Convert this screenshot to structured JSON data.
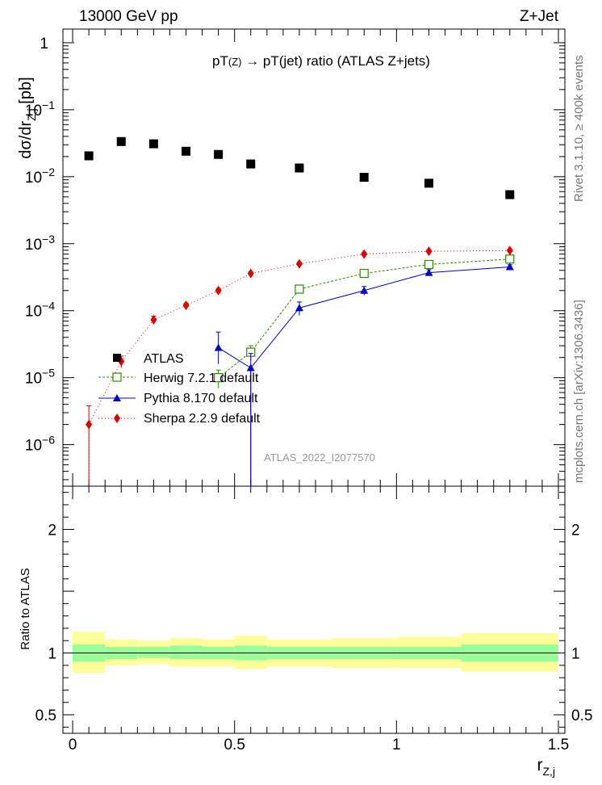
{
  "header": {
    "energy_label": "13000 GeV pp",
    "process_label": "Z+Jet"
  },
  "side_labels": {
    "rivet": "Rivet 3.1.10, ≥ 400k events",
    "mcplots": "mcplots.cern.ch [arXiv:1306.3436]"
  },
  "watermark": "ATLAS_2022_I2077570",
  "chart_data": [
    {
      "type": "scatter",
      "title": "pT(Z) → pT(jet) ratio (ATLAS Z+jets)",
      "title_parts": {
        "a": "pT",
        "b": "(Z)",
        "c": " → pT(jet) ratio (ATLAS Z+jets)"
      },
      "ylabel": "dσ/dr",
      "ylabel_sub": "Z,j",
      "ylabel_unit": " [pb]",
      "yscale": "log",
      "ylim": [
        2.4e-07,
        1.6
      ],
      "xlim": [
        -0.03,
        1.52
      ],
      "y_ticks": [
        {
          "v": 1e-06,
          "m": "10",
          "e": "−6"
        },
        {
          "v": 1e-05,
          "m": "10",
          "e": "−5"
        },
        {
          "v": 0.0001,
          "m": "10",
          "e": "−4"
        },
        {
          "v": 0.001,
          "m": "10",
          "e": "−3"
        },
        {
          "v": 0.01,
          "m": "10",
          "e": "−2"
        },
        {
          "v": 0.1,
          "m": "10",
          "e": "−1"
        },
        {
          "v": 1,
          "m": "1",
          "e": ""
        }
      ],
      "legend_position": "left-middle",
      "series": [
        {
          "name": "ATLAS",
          "color": "#000000",
          "marker": "square-filled",
          "x": [
            0.05,
            0.15,
            0.25,
            0.35,
            0.45,
            0.55,
            0.7,
            0.9,
            1.1,
            1.35
          ],
          "xerr": [
            0.05,
            0.05,
            0.05,
            0.05,
            0.05,
            0.05,
            0.1,
            0.1,
            0.1,
            0.15
          ],
          "y": [
            0.0205,
            0.0335,
            0.031,
            0.024,
            0.0215,
            0.0155,
            0.0135,
            0.0098,
            0.008,
            0.0054
          ]
        },
        {
          "name": "Herwig 7.2.1 default",
          "color": "#2e8b00",
          "marker": "square-open",
          "dash": "3,2",
          "x": [
            0.45,
            0.55,
            0.7,
            0.9,
            1.1,
            1.35
          ],
          "y": [
            1e-05,
            2.4e-05,
            0.00021,
            0.00036,
            0.00049,
            0.00059
          ],
          "yerr": [
            3e-06,
            6e-06,
            3e-05,
            4e-05,
            5e-05,
            5e-05
          ]
        },
        {
          "name": "Pythia 8.170 default",
          "color": "#0000cc",
          "marker": "triangle-filled",
          "dash": "",
          "x": [
            0.45,
            0.55,
            0.7,
            0.9,
            1.1,
            1.35
          ],
          "y": [
            2.8e-05,
            1.4e-05,
            0.00011,
            0.0002,
            0.00037,
            0.00045
          ],
          "yerr_up": [
            2e-05,
            9e-06,
            2.5e-05,
            3e-05,
            4e-05,
            3.5e-05
          ],
          "yerr_down": [
            1.2e-05,
            1.4e-05,
            2.5e-05,
            3e-05,
            4e-05,
            3.5e-05
          ]
        },
        {
          "name": "Sherpa 2.2.9 default",
          "color": "#e00000",
          "marker": "diamond-filled",
          "dash": "1,3",
          "x": [
            0.05,
            0.15,
            0.25,
            0.35,
            0.45,
            0.55,
            0.7,
            0.9,
            1.1,
            1.35
          ],
          "y": [
            2e-06,
            1.75e-05,
            7.3e-05,
            0.00012,
            0.0002,
            0.00036,
            0.0005,
            0.0007,
            0.00077,
            0.00079
          ],
          "yerr_up": [
            1.8e-06,
            3.5e-06,
            1e-05,
            1e-05,
            1.5e-05,
            2e-05,
            3e-05,
            4e-05,
            4e-05,
            4e-05
          ],
          "yerr_down": [
            2e-06,
            3.5e-06,
            1e-05,
            1e-05,
            1.5e-05,
            2e-05,
            3e-05,
            4e-05,
            4e-05,
            4e-05
          ]
        }
      ]
    },
    {
      "type": "area",
      "ylabel": "Ratio to ATLAS",
      "xlabel": "r",
      "xlabel_sub": "Z,j",
      "xlim": [
        -0.03,
        1.52
      ],
      "ylim": [
        0.35,
        2.35
      ],
      "x_ticks": [
        {
          "v": 0,
          "label": "0"
        },
        {
          "v": 0.5,
          "label": "0.5"
        },
        {
          "v": 1,
          "label": "1"
        },
        {
          "v": 1.5,
          "label": "1.5"
        }
      ],
      "y_ticks": [
        {
          "v": 0.5,
          "label": "0.5"
        },
        {
          "v": 1,
          "label": "1"
        },
        {
          "v": 2,
          "label": "2"
        }
      ],
      "reference_line": 1,
      "bands": {
        "edges": [
          0.0,
          0.1,
          0.2,
          0.3,
          0.4,
          0.5,
          0.6,
          0.8,
          1.0,
          1.2,
          1.5
        ],
        "outer_color": "#ffff99",
        "inner_color": "#99ff99",
        "outer_lo": [
          0.84,
          0.9,
          0.91,
          0.89,
          0.89,
          0.87,
          0.89,
          0.88,
          0.88,
          0.85
        ],
        "outer_hi": [
          1.17,
          1.11,
          1.1,
          1.12,
          1.11,
          1.14,
          1.11,
          1.12,
          1.13,
          1.16
        ],
        "inner_lo": [
          0.93,
          0.95,
          0.96,
          0.95,
          0.95,
          0.94,
          0.95,
          0.95,
          0.95,
          0.93
        ],
        "inner_hi": [
          1.07,
          1.05,
          1.05,
          1.06,
          1.05,
          1.06,
          1.05,
          1.05,
          1.05,
          1.07
        ]
      }
    }
  ]
}
